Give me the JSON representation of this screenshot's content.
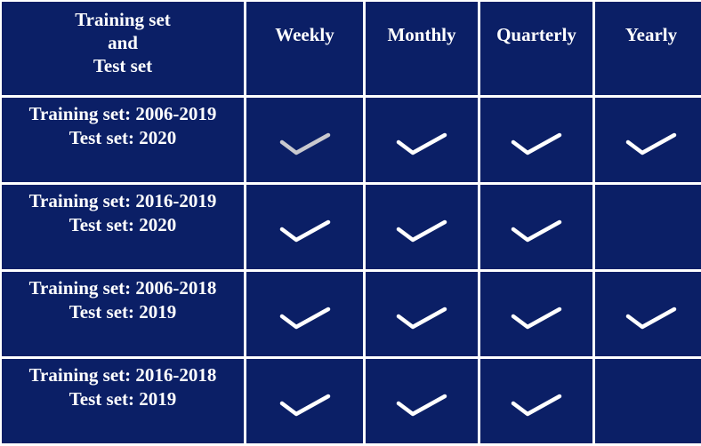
{
  "header": {
    "corner_line1": "Training set",
    "corner_line2": "and",
    "corner_line3": "Test set",
    "columns": [
      "Weekly",
      "Monthly",
      "Quarterly",
      "Yearly"
    ]
  },
  "rows": [
    {
      "line1": "Training set: 2006-2019",
      "line2": "Test set: 2020",
      "checks": [
        "faded",
        "yes",
        "yes",
        "yes"
      ]
    },
    {
      "line1": "Training set: 2016-2019",
      "line2": "Test set: 2020",
      "checks": [
        "yes",
        "yes",
        "yes",
        "no"
      ]
    },
    {
      "line1": "Training set: 2006-2018",
      "line2": "Test set: 2019",
      "checks": [
        "yes",
        "yes",
        "yes",
        "yes"
      ]
    },
    {
      "line1": "Training set: 2016-2018",
      "line2": "Test set: 2019",
      "checks": [
        "yes",
        "yes",
        "yes",
        "no"
      ]
    }
  ],
  "colors": {
    "cell_background": "#0b1f66",
    "grid_lines": "#ffffff",
    "check": "#ffffff",
    "check_faded": "#c9c9cf"
  },
  "icons": {
    "check": "checkmark-icon"
  }
}
